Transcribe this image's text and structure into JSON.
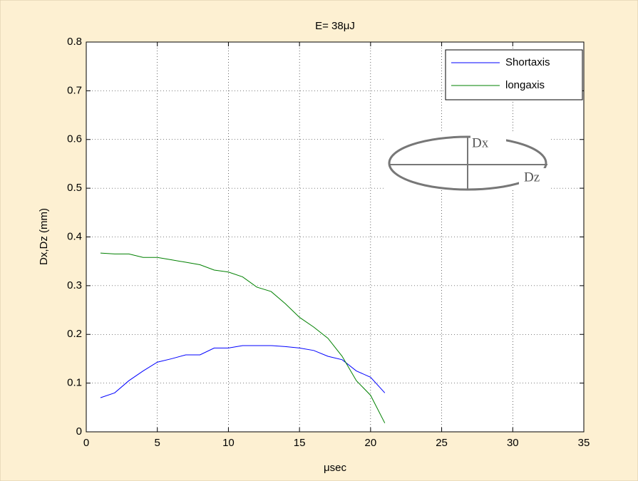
{
  "chart_data": {
    "type": "line",
    "title": "E= 38μJ",
    "x_label": "μsec",
    "y_label": "Dx,Dz (mm)",
    "x": [
      1,
      2,
      3,
      4,
      5,
      6,
      7,
      8,
      9,
      10,
      11,
      12,
      13,
      14,
      15,
      16,
      17,
      18,
      19,
      20,
      21
    ],
    "series": [
      {
        "name": "Shortaxis",
        "color": "#0000ff",
        "values": [
          0.07,
          0.08,
          0.105,
          0.125,
          0.143,
          0.15,
          0.158,
          0.158,
          0.172,
          0.172,
          0.177,
          0.177,
          0.177,
          0.175,
          0.172,
          0.167,
          0.155,
          0.148,
          0.125,
          0.112,
          0.08
        ]
      },
      {
        "name": "longaxis",
        "color": "#008000",
        "values": [
          0.367,
          0.365,
          0.365,
          0.358,
          0.358,
          0.353,
          0.348,
          0.343,
          0.332,
          0.328,
          0.318,
          0.297,
          0.288,
          0.263,
          0.235,
          0.215,
          0.192,
          0.155,
          0.105,
          0.075,
          0.018
        ]
      }
    ],
    "xlim": [
      0,
      35
    ],
    "xticks": [
      0,
      5,
      10,
      15,
      20,
      25,
      30,
      35
    ],
    "ylim": [
      0,
      0.8
    ],
    "yticks": [
      0,
      0.1,
      0.2,
      0.3,
      0.4,
      0.5,
      0.6,
      0.7,
      0.8
    ],
    "grid": true,
    "legend": "top-right",
    "inset": {
      "labels": [
        "Dx",
        "Dz"
      ]
    }
  }
}
